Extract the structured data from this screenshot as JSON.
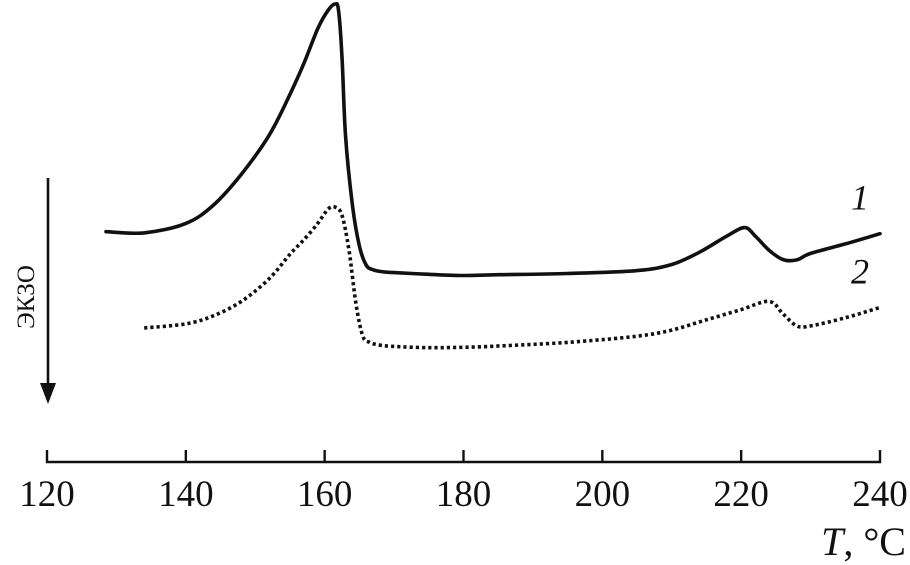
{
  "chart_data": {
    "type": "line",
    "title": "",
    "xlabel_symbol": "T",
    "xlabel_unit": ", °C",
    "ylabel": "ЭКЗО",
    "xlim": [
      120,
      240
    ],
    "ylim": [
      0,
      100
    ],
    "xticks": [
      120,
      140,
      160,
      180,
      200,
      220,
      240
    ],
    "grid": false,
    "series": [
      {
        "name": "1",
        "style": "solid",
        "color": "#111111",
        "x": [
          128.5,
          134,
          140,
          144,
          148,
          152,
          155,
          157,
          159,
          160.5,
          161.5,
          162,
          162.5,
          163,
          164,
          165,
          166,
          167,
          168,
          170,
          175,
          180,
          185,
          195,
          205,
          210,
          214,
          218,
          220.5,
          222,
          224,
          226,
          228,
          230,
          235,
          240
        ],
        "y": [
          43.5,
          43.2,
          45.5,
          50,
          57.5,
          67,
          77,
          84.5,
          93,
          97.5,
          99,
          97.5,
          86,
          67,
          50,
          40,
          35.3,
          34.2,
          33.8,
          33.5,
          33.1,
          32.8,
          33,
          33.3,
          34,
          35.5,
          38.5,
          42.5,
          44.5,
          42.5,
          39,
          36.7,
          36.6,
          38.2,
          40.5,
          43
        ]
      },
      {
        "name": "2",
        "style": "dotted",
        "color": "#111111",
        "x": [
          134,
          140,
          144,
          148,
          152,
          155,
          157,
          159,
          160.5,
          161.5,
          162.5,
          163.5,
          164.5,
          165.5,
          166.5,
          168,
          170,
          175,
          180,
          185,
          195,
          205,
          210,
          215,
          220,
          224,
          226,
          228,
          230,
          235,
          240
        ],
        "y": [
          20,
          21,
          23,
          26.5,
          32,
          38,
          41.5,
          45.5,
          49,
          49.5,
          47.5,
          39,
          26,
          18,
          16.5,
          15.8,
          15.5,
          15.2,
          15.3,
          15.6,
          16.5,
          18,
          19.5,
          22,
          24.5,
          26.5,
          23.5,
          20.5,
          20.5,
          22.5,
          25
        ]
      }
    ]
  }
}
